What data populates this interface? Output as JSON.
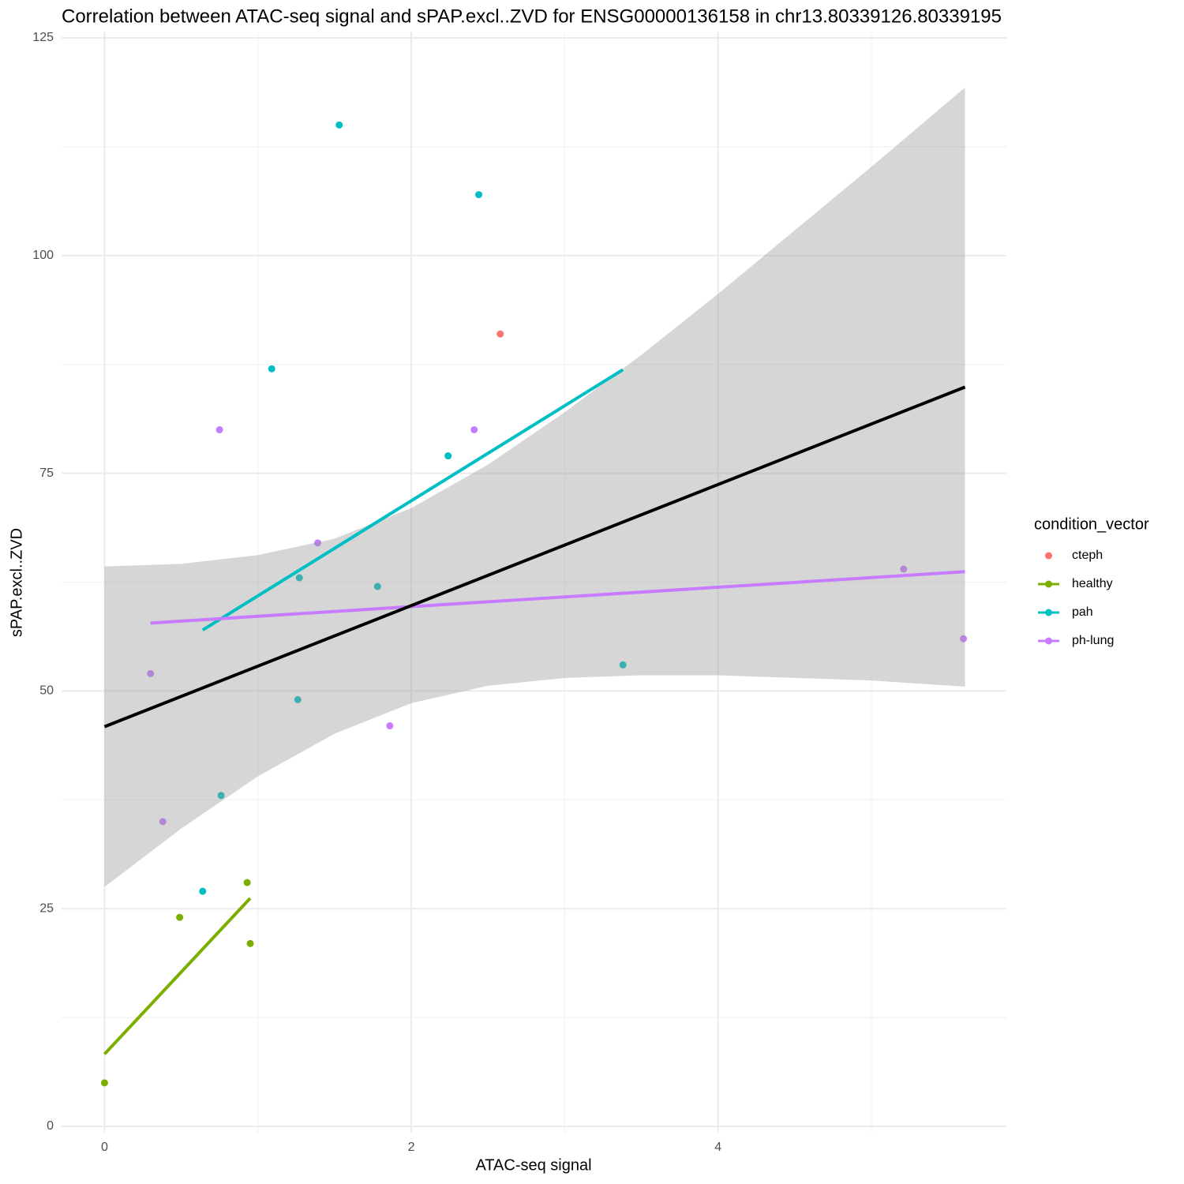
{
  "chart_data": {
    "type": "scatter",
    "title": "Correlation between ATAC-seq signal and sPAP.excl..ZVD for ENSG00000136158 in chr13.80339126.80339195",
    "x_label": "ATAC-seq signal",
    "y_label": "sPAP.excl..ZVD",
    "legend_title": "condition_vector",
    "legend_position": "right",
    "grid": true,
    "xlim": [
      -0.28,
      5.88
    ],
    "ylim": [
      0,
      125
    ],
    "xticks": [
      0,
      2,
      4
    ],
    "yticks": [
      0,
      25,
      50,
      75,
      100,
      125
    ],
    "x_minor_ticks": [
      1,
      3,
      5
    ],
    "y_minor_ticks": [
      12.5,
      37.5,
      62.5,
      87.5,
      112.5
    ],
    "series": [
      {
        "name": "cteph",
        "color": "#F8766D",
        "x": [
          2.58
        ],
        "y": [
          91
        ]
      },
      {
        "name": "healthy",
        "color": "#7CAE00",
        "x": [
          0,
          0.49,
          0.93,
          0.95
        ],
        "y": [
          5,
          24,
          28,
          21
        ],
        "fit": {
          "x": [
            0,
            0.95
          ],
          "y": [
            8.3,
            26.2
          ]
        }
      },
      {
        "name": "pah",
        "color": "#00BFC4",
        "x": [
          1.53,
          2.44,
          1.09,
          2.24,
          1.27,
          1.78,
          3.38,
          1.26,
          0.76,
          0.64
        ],
        "y": [
          115,
          107,
          87,
          77,
          63,
          62,
          53,
          49,
          38,
          27
        ],
        "fit": {
          "x": [
            0.64,
            3.38
          ],
          "y": [
            57,
            86.9
          ]
        }
      },
      {
        "name": "ph-lung",
        "color": "#C77CFF",
        "x": [
          0.75,
          2.41,
          1.39,
          0.3,
          0.38,
          1.86,
          5.21,
          5.6
        ],
        "y": [
          80,
          80,
          67,
          52,
          35,
          46,
          64,
          56
        ],
        "fit": {
          "x": [
            0.3,
            5.61
          ],
          "y": [
            57.8,
            63.7
          ]
        }
      }
    ],
    "overall_fit": {
      "color": "#000000",
      "x": [
        0,
        5.61
      ],
      "y": [
        45.9,
        84.9
      ]
    },
    "band": {
      "color": "#999999",
      "x": [
        0,
        0.5,
        1,
        1.5,
        2,
        2.5,
        3,
        3.5,
        4,
        4.5,
        5,
        5.61
      ],
      "upper": [
        64.3,
        64.6,
        65.6,
        67.5,
        71.0,
        76.0,
        82.0,
        88.6,
        95.6,
        102.9,
        110.2,
        119.3
      ],
      "lower": [
        27.5,
        34.2,
        40.2,
        45.1,
        48.6,
        50.6,
        51.5,
        51.8,
        51.8,
        51.5,
        51.2,
        50.5
      ]
    }
  }
}
